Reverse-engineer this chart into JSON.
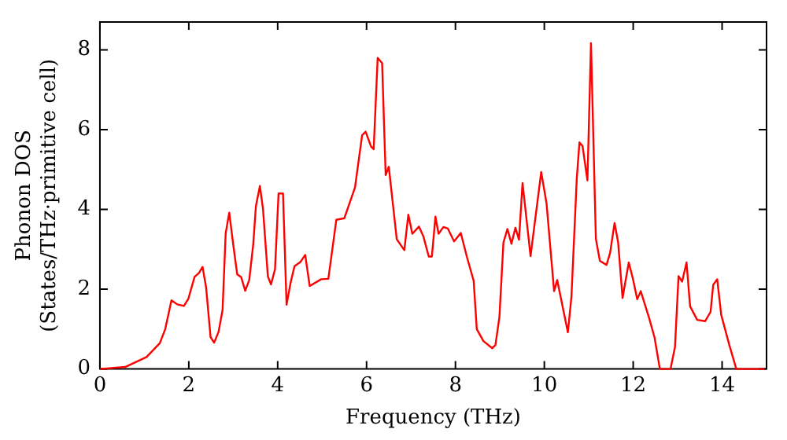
{
  "chart_data": {
    "type": "line",
    "xlabel": "Frequency (THz)",
    "ylabel": "Phonon DOS\n(States/THz·primitive cell)",
    "xlim": [
      0,
      15
    ],
    "ylim": [
      0,
      8.7
    ],
    "xticks": [
      0,
      2,
      4,
      6,
      8,
      10,
      12,
      14
    ],
    "yticks": [
      0,
      2,
      4,
      6,
      8
    ],
    "grid": false,
    "legend": false,
    "marker": "none",
    "line_style": "solid",
    "series": [
      {
        "color": "#ff0000",
        "x": [
          0,
          0.57,
          1.05,
          1.35,
          1.47,
          1.61,
          1.74,
          1.89,
          1.99,
          2.13,
          2.23,
          2.31,
          2.39,
          2.49,
          2.57,
          2.67,
          2.76,
          2.83,
          2.91,
          3.0,
          3.09,
          3.18,
          3.27,
          3.36,
          3.45,
          3.51,
          3.6,
          3.67,
          3.78,
          3.85,
          3.94,
          4.02,
          4.12,
          4.2,
          4.29,
          4.38,
          4.51,
          4.62,
          4.72,
          4.98,
          5.14,
          5.32,
          5.5,
          5.74,
          5.9,
          5.98,
          6.1,
          6.16,
          6.25,
          6.35,
          6.43,
          6.5,
          6.68,
          6.85,
          6.94,
          7.03,
          7.18,
          7.28,
          7.4,
          7.47,
          7.55,
          7.62,
          7.73,
          7.83,
          7.97,
          8.12,
          8.27,
          8.41,
          8.48,
          8.63,
          8.83,
          8.9,
          8.99,
          9.08,
          9.17,
          9.26,
          9.35,
          9.43,
          9.51,
          9.69,
          9.93,
          10.05,
          10.22,
          10.29,
          10.53,
          10.61,
          10.73,
          10.79,
          10.86,
          10.97,
          11.05,
          11.16,
          11.25,
          11.4,
          11.48,
          11.58,
          11.66,
          11.76,
          11.9,
          12.0,
          12.09,
          12.17,
          12.36,
          12.48,
          12.6,
          12.84,
          12.94,
          13.02,
          13.1,
          13.2,
          13.28,
          13.44,
          13.62,
          13.74,
          13.8,
          13.89,
          13.98,
          14.16,
          14.32,
          14.95
        ],
        "values": [
          0,
          0.05,
          0.3,
          0.65,
          1.0,
          1.72,
          1.62,
          1.58,
          1.76,
          2.31,
          2.41,
          2.56,
          2.04,
          0.8,
          0.66,
          0.93,
          1.48,
          3.4,
          3.92,
          3.12,
          2.37,
          2.3,
          1.96,
          2.23,
          3.12,
          4.08,
          4.59,
          4.01,
          2.32,
          2.12,
          2.5,
          4.4,
          4.4,
          1.61,
          2.16,
          2.58,
          2.68,
          2.86,
          2.08,
          2.25,
          2.26,
          3.74,
          3.78,
          4.55,
          5.86,
          5.95,
          5.58,
          5.51,
          7.8,
          7.67,
          4.86,
          5.07,
          3.25,
          2.98,
          3.87,
          3.39,
          3.57,
          3.32,
          2.82,
          2.82,
          3.82,
          3.39,
          3.56,
          3.52,
          3.2,
          3.41,
          2.76,
          2.21,
          1.0,
          0.7,
          0.52,
          0.6,
          1.31,
          3.17,
          3.51,
          3.14,
          3.54,
          3.24,
          4.66,
          2.83,
          4.94,
          4.15,
          1.95,
          2.23,
          0.92,
          1.81,
          4.77,
          5.68,
          5.59,
          4.73,
          8.17,
          3.26,
          2.71,
          2.61,
          2.91,
          3.66,
          3.18,
          1.78,
          2.67,
          2.23,
          1.75,
          1.95,
          1.27,
          0.79,
          0,
          0,
          0.55,
          2.33,
          2.19,
          2.67,
          1.57,
          1.23,
          1.2,
          1.43,
          2.11,
          2.25,
          1.36,
          0.61,
          0,
          0
        ]
      }
    ]
  }
}
